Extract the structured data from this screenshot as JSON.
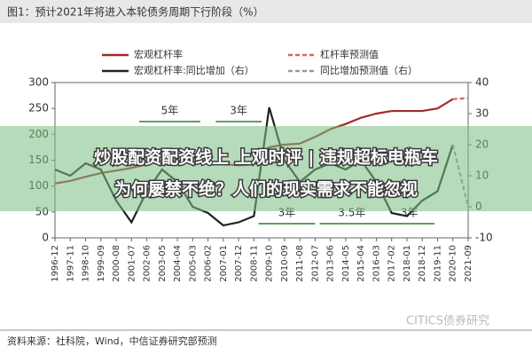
{
  "chart_data": {
    "type": "line",
    "title": "图1：预计2021年将进入本轮债务周期下行阶段（%）",
    "categories": [
      "1996-12",
      "1997-11",
      "1998-10",
      "1999-09",
      "2000-08",
      "2001-07",
      "2002-06",
      "2003-05",
      "2004-04",
      "2005-03",
      "2006-02",
      "2007-01",
      "2007-12",
      "2008-11",
      "2009-10",
      "2010-09",
      "2011-08",
      "2012-07",
      "2013-06",
      "2014-05",
      "2015-04",
      "2016-03",
      "2017-02",
      "2018-01",
      "2018-12",
      "2019-11",
      "2020-10",
      "2021-09"
    ],
    "series": [
      {
        "name": "宏观杠杆率",
        "color": "#a52a2a",
        "dash": false,
        "values": [
          105,
          110,
          118,
          125,
          130,
          135,
          142,
          150,
          148,
          145,
          145,
          142,
          140,
          142,
          175,
          180,
          182,
          195,
          210,
          220,
          232,
          240,
          245,
          245,
          245,
          250,
          268,
          null
        ]
      },
      {
        "name": "杠杆率预测值",
        "color": "#e06060",
        "dash": true,
        "values": [
          null,
          null,
          null,
          null,
          null,
          null,
          null,
          null,
          null,
          null,
          null,
          null,
          null,
          null,
          null,
          null,
          null,
          null,
          null,
          null,
          null,
          null,
          null,
          null,
          null,
          null,
          268,
          270
        ]
      },
      {
        "name": "宏观杠杆率:同比增加（右）",
        "color": "#222222",
        "dash": false,
        "axis": "y2",
        "values": [
          12,
          10,
          14,
          12,
          2,
          -5,
          5,
          12,
          8,
          0,
          -2,
          -6,
          -5,
          -3,
          32,
          15,
          8,
          12,
          14,
          12,
          15,
          8,
          -2,
          -3,
          2,
          5,
          20,
          null
        ]
      },
      {
        "name": "同比增加预测值（右）",
        "color": "#999999",
        "dash": true,
        "axis": "y2",
        "values": [
          null,
          null,
          null,
          null,
          null,
          null,
          null,
          null,
          null,
          null,
          null,
          null,
          null,
          null,
          null,
          null,
          null,
          null,
          null,
          null,
          null,
          null,
          null,
          null,
          null,
          null,
          20,
          0
        ]
      }
    ],
    "ylim": [
      0,
      300
    ],
    "yticks": [
      0,
      50,
      100,
      150,
      200,
      250,
      300
    ],
    "y2lim": [
      -10,
      40
    ],
    "y2ticks": [
      -10,
      0,
      10,
      20,
      30,
      40
    ],
    "annotations": [
      "5年",
      "3年",
      "3年",
      "3.5年",
      "3年"
    ],
    "overlay": [
      "炒股配资配资线上 上观时评 | 违规超标电瓶车",
      "为何屡禁不绝？人们的现实需求不能忽视"
    ],
    "watermark": "CITICS债券研究",
    "source": "资料来源：社科院，Wind，中信证券研究部预测"
  }
}
